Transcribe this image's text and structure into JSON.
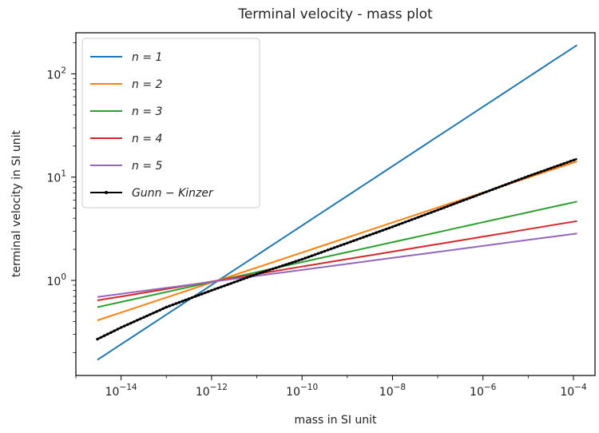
{
  "chart_data": {
    "type": "line",
    "title": "Terminal velocity - mass plot",
    "xlabel": "mass in SI unit",
    "ylabel": "terminal velocity in SI unit",
    "xscale": "log",
    "yscale": "log",
    "xlim": [
      1e-15,
      0.0003
    ],
    "ylim": [
      0.12,
      250
    ],
    "xticks": [
      {
        "value": 1e-14,
        "base": "10",
        "exp": "−14"
      },
      {
        "value": 1e-12,
        "base": "10",
        "exp": "−12"
      },
      {
        "value": 1e-10,
        "base": "10",
        "exp": "−10"
      },
      {
        "value": 1e-08,
        "base": "10",
        "exp": "−8"
      },
      {
        "value": 1e-06,
        "base": "10",
        "exp": "−6"
      },
      {
        "value": 0.0001,
        "base": "10",
        "exp": "−4"
      }
    ],
    "yticks": [
      {
        "value": 1,
        "base": "10",
        "exp": "0"
      },
      {
        "value": 10,
        "base": "10",
        "exp": "1"
      },
      {
        "value": 100,
        "base": "10",
        "exp": "2"
      }
    ],
    "grid": false,
    "legend_position": "top-left",
    "series": [
      {
        "name": "n = 1",
        "color": "#1f77b4",
        "x": [
          3e-15,
          0.00012
        ],
        "y": [
          0.17,
          190
        ]
      },
      {
        "name": "n = 2",
        "color": "#ff7f0e",
        "x": [
          3e-15,
          0.00012
        ],
        "y": [
          0.41,
          14.2
        ]
      },
      {
        "name": "n = 3",
        "color": "#2ca02c",
        "x": [
          3e-15,
          0.00012
        ],
        "y": [
          0.55,
          5.8
        ]
      },
      {
        "name": "n = 4",
        "color": "#d62728",
        "x": [
          3e-15,
          0.00012
        ],
        "y": [
          0.64,
          3.75
        ]
      },
      {
        "name": "n = 5",
        "color": "#9467bd",
        "x": [
          3e-15,
          0.00012
        ],
        "y": [
          0.69,
          2.85
        ]
      },
      {
        "name": "Gunn − Kinzer",
        "color": "#000000",
        "markers": true,
        "x": [
          3e-15,
          1e-14,
          1e-13,
          1e-12,
          1e-11,
          1e-10,
          1e-09,
          1e-08,
          1e-07,
          1e-06,
          1e-05,
          0.00012
        ],
        "y": [
          0.27,
          0.35,
          0.55,
          0.8,
          1.15,
          1.6,
          2.3,
          3.3,
          4.8,
          7.0,
          10.2,
          15.0
        ]
      }
    ]
  }
}
